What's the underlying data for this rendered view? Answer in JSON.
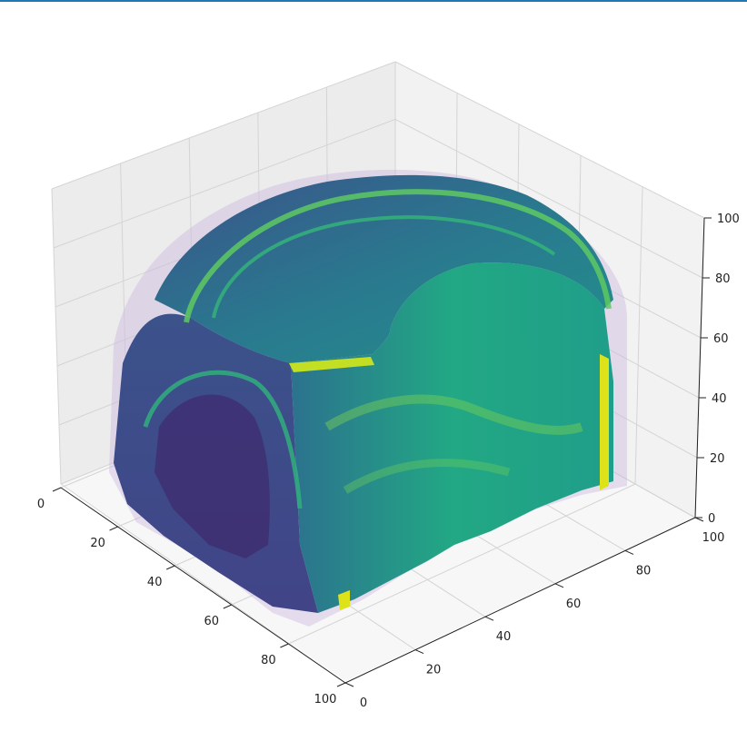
{
  "colors": {
    "accent_bar": "#1f77b4",
    "pane_left": "#ececec",
    "pane_right": "#f2f2f2",
    "pane_floor": "#f7f7f7",
    "colormap": "viridis"
  },
  "chart_data": {
    "type": "voxel3d",
    "title": "",
    "xlabel": "",
    "ylabel": "",
    "zlabel": "",
    "xlim": [
      0,
      100
    ],
    "ylim": [
      0,
      100
    ],
    "zlim": [
      0,
      100
    ],
    "grid": true,
    "colormap": "viridis",
    "x_ticks": [
      "0",
      "20",
      "40",
      "60",
      "80",
      "100"
    ],
    "y_ticks": [
      "0",
      "20",
      "40",
      "60",
      "80",
      "100"
    ],
    "z_ticks": [
      "0",
      "20",
      "40",
      "60",
      "80",
      "100"
    ],
    "volume_extent": {
      "x": [
        0,
        100
      ],
      "y": [
        5,
        100
      ],
      "z": [
        0,
        95
      ]
    }
  }
}
